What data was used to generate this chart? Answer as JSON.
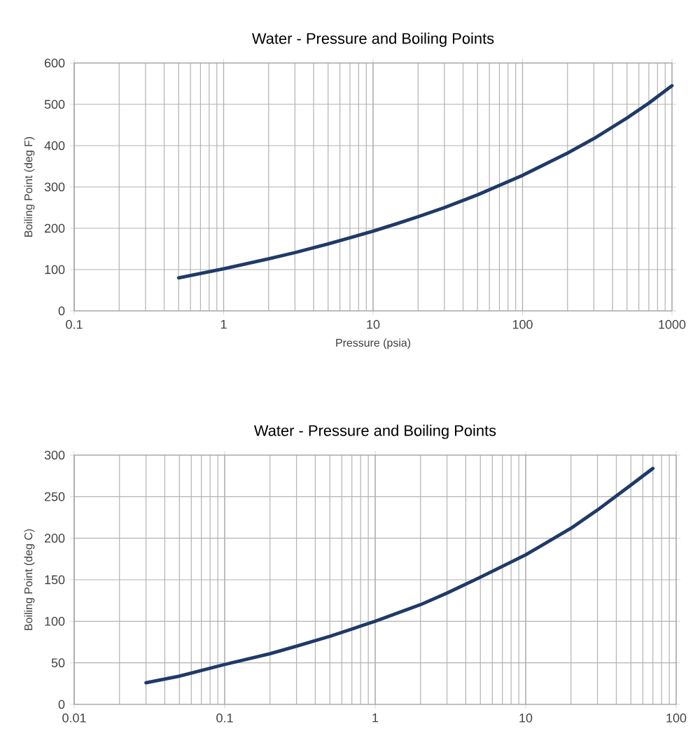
{
  "chart_data": [
    {
      "type": "line",
      "title": "Water - Pressure and Boiling Points",
      "xlabel": "Pressure (psia)",
      "ylabel": "Boiling Point (deg F)",
      "log": "x",
      "grid": true,
      "xlim": [
        0.1,
        1000
      ],
      "ylim": [
        0,
        600
      ],
      "xticks": [
        0.1,
        1,
        10,
        100,
        1000
      ],
      "yticks": [
        0,
        100,
        200,
        300,
        400,
        500,
        600
      ],
      "series": [
        {
          "color": "#1f3a68",
          "x": [
            0.5,
            1,
            2,
            3,
            5,
            10,
            14.7,
            20,
            30,
            50,
            100,
            200,
            300,
            500,
            700,
            1000
          ],
          "values": [
            80,
            102,
            126,
            141,
            162,
            193,
            212,
            228,
            250,
            281,
            328,
            382,
            417,
            467,
            503,
            545
          ]
        }
      ]
    },
    {
      "type": "line",
      "title": "Water - Pressure and Boiling Points",
      "ylabel": "Boiling Point (deg C)",
      "log": "x",
      "grid": true,
      "xlim": [
        0.01,
        100
      ],
      "ylim": [
        0,
        300
      ],
      "xticks": [
        0.01,
        0.1,
        1,
        10,
        100
      ],
      "yticks": [
        0,
        50,
        100,
        150,
        200,
        250,
        300
      ],
      "series": [
        {
          "color": "#1f3a68",
          "x": [
            0.03,
            0.05,
            0.1,
            0.2,
            0.3,
            0.5,
            1,
            2,
            3,
            5,
            10,
            20,
            30,
            50,
            70
          ],
          "values": [
            26,
            34,
            48,
            61,
            70,
            82,
            100,
            120,
            134,
            153,
            180,
            212,
            234,
            264,
            284
          ]
        }
      ]
    }
  ]
}
